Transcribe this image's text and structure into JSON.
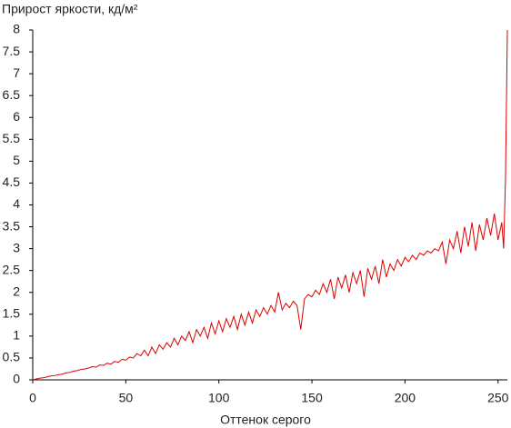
{
  "chart_data": {
    "type": "line",
    "title": "Прирост яркости, кд/м²",
    "x_label": "Оттенок серого",
    "x": [
      0,
      2,
      4,
      6,
      8,
      10,
      12,
      14,
      16,
      18,
      20,
      22,
      24,
      26,
      28,
      30,
      32,
      34,
      36,
      38,
      40,
      42,
      44,
      46,
      48,
      50,
      52,
      54,
      56,
      58,
      60,
      62,
      64,
      66,
      68,
      70,
      72,
      74,
      76,
      78,
      80,
      82,
      84,
      86,
      88,
      90,
      92,
      94,
      96,
      98,
      100,
      102,
      104,
      106,
      108,
      110,
      112,
      114,
      116,
      118,
      120,
      122,
      124,
      126,
      128,
      130,
      132,
      134,
      136,
      138,
      140,
      142,
      144,
      146,
      148,
      150,
      152,
      154,
      156,
      158,
      160,
      162,
      164,
      166,
      168,
      170,
      172,
      174,
      176,
      178,
      180,
      182,
      184,
      186,
      188,
      190,
      192,
      194,
      196,
      198,
      200,
      202,
      204,
      206,
      208,
      210,
      212,
      214,
      216,
      218,
      220,
      222,
      224,
      226,
      228,
      230,
      232,
      234,
      236,
      238,
      240,
      242,
      244,
      246,
      248,
      250,
      252,
      253,
      254,
      255
    ],
    "series": [
      {
        "name": "Прирост яркости",
        "color": "#dd0000",
        "values": [
          0,
          0.02,
          0.04,
          0.05,
          0.07,
          0.09,
          0.1,
          0.12,
          0.13,
          0.16,
          0.17,
          0.2,
          0.21,
          0.24,
          0.25,
          0.27,
          0.3,
          0.29,
          0.34,
          0.33,
          0.38,
          0.36,
          0.42,
          0.4,
          0.47,
          0.45,
          0.52,
          0.5,
          0.6,
          0.55,
          0.68,
          0.55,
          0.75,
          0.6,
          0.8,
          0.7,
          0.85,
          0.75,
          0.95,
          0.8,
          1.0,
          0.9,
          1.1,
          0.85,
          1.15,
          1.0,
          1.2,
          0.95,
          1.3,
          1.05,
          1.35,
          1.1,
          1.4,
          1.2,
          1.45,
          1.15,
          1.5,
          1.25,
          1.55,
          1.3,
          1.6,
          1.45,
          1.65,
          1.5,
          1.7,
          1.55,
          2.0,
          1.6,
          1.75,
          1.65,
          1.8,
          1.7,
          1.15,
          1.85,
          1.95,
          1.9,
          2.05,
          1.95,
          2.2,
          2.0,
          2.3,
          1.85,
          2.35,
          2.1,
          2.4,
          2.0,
          2.45,
          2.2,
          2.5,
          1.9,
          2.55,
          2.3,
          2.6,
          2.2,
          2.75,
          2.35,
          2.65,
          2.5,
          2.75,
          2.6,
          2.8,
          2.7,
          2.85,
          2.75,
          2.9,
          2.85,
          2.95,
          2.9,
          3.0,
          2.95,
          3.15,
          2.65,
          3.2,
          3.0,
          3.4,
          2.9,
          3.5,
          3.05,
          3.6,
          2.95,
          3.55,
          3.2,
          3.7,
          3.3,
          3.8,
          3.2,
          3.6,
          3.0,
          4.6,
          8.0
        ]
      }
    ],
    "xlim": [
      0,
      255
    ],
    "ylim": [
      0,
      8
    ],
    "xticks": [
      0,
      50,
      100,
      150,
      200,
      250
    ],
    "yticks": [
      0,
      0.5,
      1,
      1.5,
      2,
      2.5,
      3,
      3.5,
      4,
      4.5,
      5,
      5.5,
      6,
      6.5,
      7,
      7.5,
      8
    ]
  }
}
